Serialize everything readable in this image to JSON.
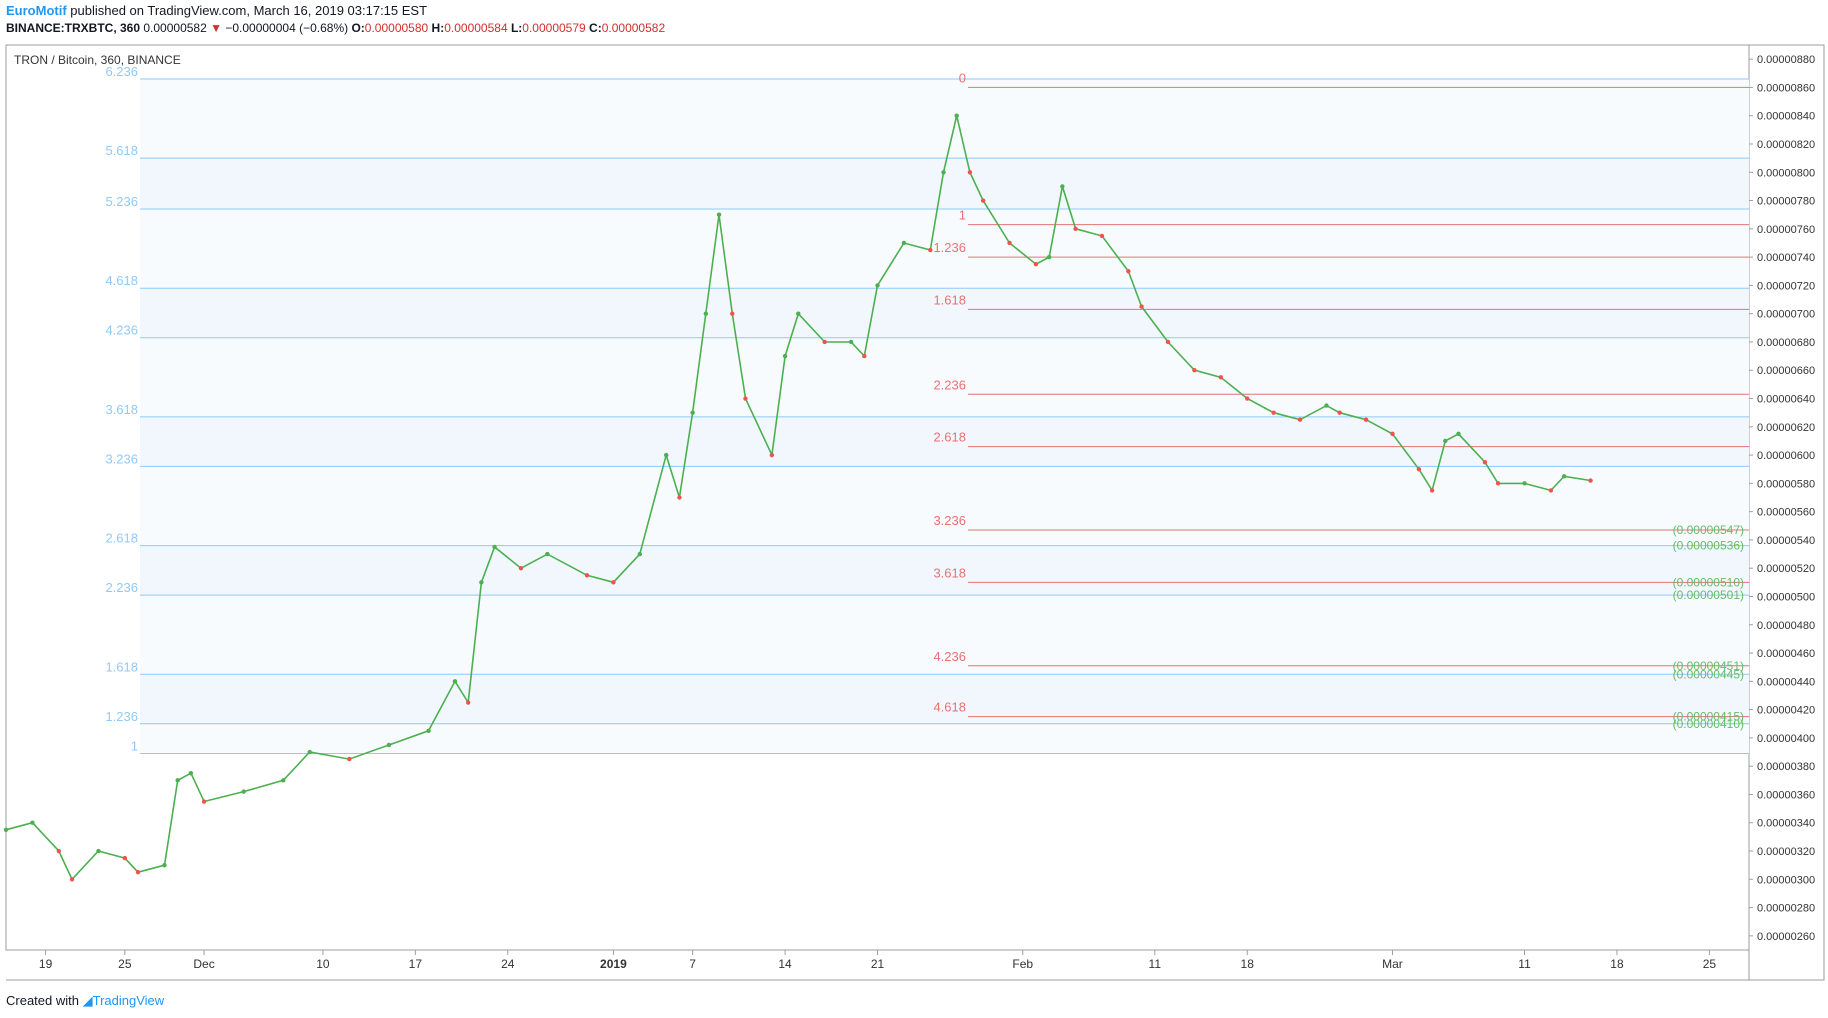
{
  "header": {
    "author": "EuroMotif",
    "published_text": " published on TradingView.com, March 16, 2019 03:17:15 EST",
    "symbol": "BINANCE:TRXBTC, 360",
    "last": "0.00000582",
    "arrow": "▼",
    "change": "−0.00000004 (−0.68%)",
    "o_label": "O:",
    "o_value": "0.00000580",
    "h_label": "H:",
    "h_value": "0.00000584",
    "l_label": "L:",
    "l_value": "0.00000579",
    "c_label": "C:",
    "c_value": "0.00000582"
  },
  "footer": {
    "created_with": "Created with",
    "brand": "TradingView"
  },
  "colors": {
    "up": "#4caf50",
    "down": "#ef5350",
    "fib_blue": "#90caf9",
    "fib_red": "#e57373",
    "fib_green": "#66bb6a"
  },
  "chart_data": {
    "type": "candlestick",
    "title": "TRON / Bitcoin, 360, BINANCE",
    "y_axis": {
      "range": [
        2.5e-06,
        8.9e-06
      ],
      "ticks": [
        "0.00000260",
        "0.00000280",
        "0.00000300",
        "0.00000320",
        "0.00000340",
        "0.00000360",
        "0.00000380",
        "0.00000400",
        "0.00000420",
        "0.00000440",
        "0.00000460",
        "0.00000480",
        "0.00000500",
        "0.00000520",
        "0.00000540",
        "0.00000560",
        "0.00000580",
        "0.00000600",
        "0.00000620",
        "0.00000640",
        "0.00000660",
        "0.00000680",
        "0.00000700",
        "0.00000720",
        "0.00000740",
        "0.00000760",
        "0.00000780",
        "0.00000800",
        "0.00000820",
        "0.00000840",
        "0.00000860",
        "0.00000880"
      ]
    },
    "x_axis": {
      "range": [
        "2018-11-16",
        "2019-03-28"
      ],
      "ticks": [
        {
          "date": "2018-11-19",
          "label": "19"
        },
        {
          "date": "2018-11-25",
          "label": "25"
        },
        {
          "date": "2018-12-01",
          "label": "Dec"
        },
        {
          "date": "2018-12-10",
          "label": "10"
        },
        {
          "date": "2018-12-17",
          "label": "17"
        },
        {
          "date": "2018-12-24",
          "label": "24"
        },
        {
          "date": "2019-01-01",
          "label": "2019",
          "bold": true
        },
        {
          "date": "2019-01-07",
          "label": "7"
        },
        {
          "date": "2019-01-14",
          "label": "14"
        },
        {
          "date": "2019-01-21",
          "label": "21"
        },
        {
          "date": "2019-02-01",
          "label": "Feb"
        },
        {
          "date": "2019-02-11",
          "label": "11"
        },
        {
          "date": "2019-02-18",
          "label": "18"
        },
        {
          "date": "2019-03-01",
          "label": "Mar"
        },
        {
          "date": "2019-03-11",
          "label": "11"
        },
        {
          "date": "2019-03-18",
          "label": "18"
        },
        {
          "date": "2019-03-25",
          "label": "25"
        }
      ]
    },
    "series": [
      {
        "points": [
          {
            "date": "2018-11-16",
            "price": 3.35e-06
          },
          {
            "date": "2018-11-18",
            "price": 3.4e-06
          },
          {
            "date": "2018-11-20",
            "price": 3.2e-06
          },
          {
            "date": "2018-11-21",
            "price": 3e-06
          },
          {
            "date": "2018-11-23",
            "price": 3.2e-06
          },
          {
            "date": "2018-11-25",
            "price": 3.15e-06
          },
          {
            "date": "2018-11-26",
            "price": 3.05e-06
          },
          {
            "date": "2018-11-28",
            "price": 3.1e-06
          },
          {
            "date": "2018-11-29",
            "price": 3.7e-06
          },
          {
            "date": "2018-11-30",
            "price": 3.75e-06
          },
          {
            "date": "2018-12-01",
            "price": 3.55e-06
          },
          {
            "date": "2018-12-04",
            "price": 3.62e-06
          },
          {
            "date": "2018-12-07",
            "price": 3.7e-06
          },
          {
            "date": "2018-12-09",
            "price": 3.9e-06
          },
          {
            "date": "2018-12-12",
            "price": 3.85e-06
          },
          {
            "date": "2018-12-15",
            "price": 3.95e-06
          },
          {
            "date": "2018-12-18",
            "price": 4.05e-06
          },
          {
            "date": "2018-12-20",
            "price": 4.4e-06
          },
          {
            "date": "2018-12-21",
            "price": 4.25e-06
          },
          {
            "date": "2018-12-22",
            "price": 5.1e-06
          },
          {
            "date": "2018-12-23",
            "price": 5.35e-06
          },
          {
            "date": "2018-12-25",
            "price": 5.2e-06
          },
          {
            "date": "2018-12-27",
            "price": 5.3e-06
          },
          {
            "date": "2018-12-30",
            "price": 5.15e-06
          },
          {
            "date": "2019-01-01",
            "price": 5.1e-06
          },
          {
            "date": "2019-01-03",
            "price": 5.3e-06
          },
          {
            "date": "2019-01-05",
            "price": 6e-06
          },
          {
            "date": "2019-01-06",
            "price": 5.7e-06
          },
          {
            "date": "2019-01-07",
            "price": 6.3e-06
          },
          {
            "date": "2019-01-08",
            "price": 7e-06
          },
          {
            "date": "2019-01-09",
            "price": 7.7e-06
          },
          {
            "date": "2019-01-10",
            "price": 7e-06
          },
          {
            "date": "2019-01-11",
            "price": 6.4e-06
          },
          {
            "date": "2019-01-13",
            "price": 6e-06
          },
          {
            "date": "2019-01-14",
            "price": 6.7e-06
          },
          {
            "date": "2019-01-15",
            "price": 7e-06
          },
          {
            "date": "2019-01-17",
            "price": 6.8e-06
          },
          {
            "date": "2019-01-19",
            "price": 6.8e-06
          },
          {
            "date": "2019-01-20",
            "price": 6.7e-06
          },
          {
            "date": "2019-01-21",
            "price": 7.2e-06
          },
          {
            "date": "2019-01-23",
            "price": 7.5e-06
          },
          {
            "date": "2019-01-25",
            "price": 7.45e-06
          },
          {
            "date": "2019-01-26",
            "price": 8e-06
          },
          {
            "date": "2019-01-27",
            "price": 8.4e-06
          },
          {
            "date": "2019-01-28",
            "price": 8e-06
          },
          {
            "date": "2019-01-29",
            "price": 7.8e-06
          },
          {
            "date": "2019-01-31",
            "price": 7.5e-06
          },
          {
            "date": "2019-02-02",
            "price": 7.35e-06
          },
          {
            "date": "2019-02-03",
            "price": 7.4e-06
          },
          {
            "date": "2019-02-04",
            "price": 7.9e-06
          },
          {
            "date": "2019-02-05",
            "price": 7.6e-06
          },
          {
            "date": "2019-02-07",
            "price": 7.55e-06
          },
          {
            "date": "2019-02-09",
            "price": 7.3e-06
          },
          {
            "date": "2019-02-10",
            "price": 7.05e-06
          },
          {
            "date": "2019-02-12",
            "price": 6.8e-06
          },
          {
            "date": "2019-02-14",
            "price": 6.6e-06
          },
          {
            "date": "2019-02-16",
            "price": 6.55e-06
          },
          {
            "date": "2019-02-18",
            "price": 6.4e-06
          },
          {
            "date": "2019-02-20",
            "price": 6.3e-06
          },
          {
            "date": "2019-02-22",
            "price": 6.25e-06
          },
          {
            "date": "2019-02-24",
            "price": 6.35e-06
          },
          {
            "date": "2019-02-25",
            "price": 6.3e-06
          },
          {
            "date": "2019-02-27",
            "price": 6.25e-06
          },
          {
            "date": "2019-03-01",
            "price": 6.15e-06
          },
          {
            "date": "2019-03-03",
            "price": 5.9e-06
          },
          {
            "date": "2019-03-04",
            "price": 5.75e-06
          },
          {
            "date": "2019-03-05",
            "price": 6.1e-06
          },
          {
            "date": "2019-03-06",
            "price": 6.15e-06
          },
          {
            "date": "2019-03-08",
            "price": 5.95e-06
          },
          {
            "date": "2019-03-09",
            "price": 5.8e-06
          },
          {
            "date": "2019-03-11",
            "price": 5.8e-06
          },
          {
            "date": "2019-03-13",
            "price": 5.75e-06
          },
          {
            "date": "2019-03-14",
            "price": 5.85e-06
          },
          {
            "date": "2019-03-16",
            "price": 5.82e-06
          }
        ]
      }
    ],
    "fib_extension_left": {
      "levels": [
        {
          "label": "6.236",
          "price": 8.66e-06
        },
        {
          "label": "5.618",
          "price": 8.1e-06
        },
        {
          "label": "5.236",
          "price": 7.74e-06
        },
        {
          "label": "4.618",
          "price": 7.18e-06
        },
        {
          "label": "4.236",
          "price": 6.83e-06
        },
        {
          "label": "3.618",
          "price": 6.27e-06
        },
        {
          "label": "3.236",
          "price": 5.92e-06
        },
        {
          "label": "2.618",
          "price": 5.36e-06
        },
        {
          "label": "2.236",
          "price": 5.01e-06
        },
        {
          "label": "1.618",
          "price": 4.45e-06
        },
        {
          "label": "1.236",
          "price": 4.1e-06
        },
        {
          "label": "1",
          "price": 3.89e-06
        }
      ]
    },
    "fib_extension_right": {
      "levels": [
        {
          "label": "0",
          "price": 8.6e-06
        },
        {
          "label": "1",
          "price": 7.63e-06
        },
        {
          "label": "1.236",
          "price": 7.4e-06
        },
        {
          "label": "1.618",
          "price": 7.03e-06
        },
        {
          "label": "2.236",
          "price": 6.43e-06
        },
        {
          "label": "2.618",
          "price": 6.06e-06
        },
        {
          "label": "3.236",
          "price": 5.47e-06
        },
        {
          "label": "3.618",
          "price": 5.1e-06
        },
        {
          "label": "4.236",
          "price": 4.51e-06
        },
        {
          "label": "4.618",
          "price": 4.15e-06
        }
      ]
    },
    "price_tags": [
      {
        "text": "(0.00000547)",
        "price": 5.47e-06
      },
      {
        "text": "(0.00000536)",
        "price": 5.36e-06
      },
      {
        "text": "(0.00000510)",
        "price": 5.1e-06
      },
      {
        "text": "(0.00000501)",
        "price": 5.01e-06
      },
      {
        "text": "(0.00000451)",
        "price": 4.51e-06
      },
      {
        "text": "(0.00000445)",
        "price": 4.45e-06
      },
      {
        "text": "(0.00000415)",
        "price": 4.15e-06
      },
      {
        "text": "(0.00000410)",
        "price": 4.1e-06
      }
    ]
  }
}
